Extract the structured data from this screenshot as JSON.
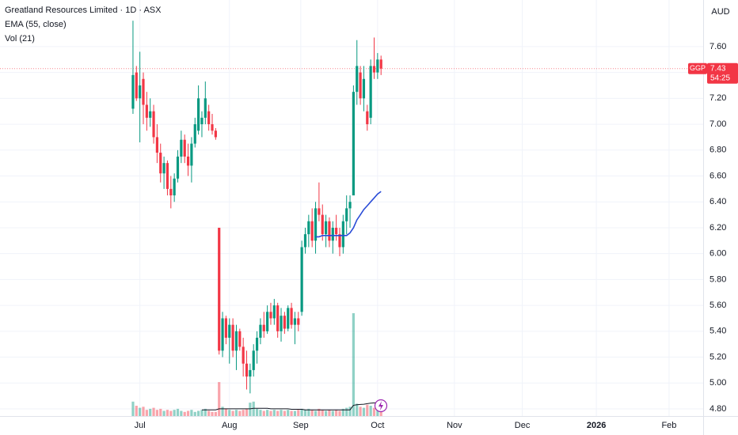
{
  "chart_data": {
    "type": "candlestick",
    "title": "Greatland Resources Limited · 1D · ASX",
    "indicators": [
      "EMA (55, close)",
      "Vol (21)"
    ],
    "currency": "AUD",
    "symbol": "GGP",
    "last_price": 7.43,
    "countdown": "54:25",
    "open": [
      7.12,
      7.4,
      7.2,
      7.35,
      7.15,
      7.05,
      7.1,
      6.9,
      6.78,
      6.62,
      6.7,
      6.5,
      6.45,
      6.58,
      6.75,
      6.88,
      6.75,
      6.68,
      6.85,
      6.95,
      7.0,
      7.05,
      7.1,
      7.0,
      6.95,
      6.2,
      5.25,
      5.5,
      5.35,
      5.45,
      5.25,
      5.4,
      5.28,
      5.15,
      5.05,
      5.1,
      5.25,
      5.35,
      5.45,
      5.4,
      5.55,
      5.5,
      5.6,
      5.4,
      5.52,
      5.42,
      5.58,
      5.45,
      5.5,
      5.55,
      6.05,
      6.15,
      6.25,
      6.1,
      6.35,
      6.3,
      6.15,
      6.25,
      6.1,
      6.2,
      6.15,
      6.05,
      6.25,
      6.35,
      6.45,
      7.25,
      7.4,
      7.2,
      7.1,
      7.05,
      7.45,
      7.4,
      7.5
    ],
    "high": [
      7.8,
      7.45,
      7.56,
      7.4,
      7.25,
      7.2,
      7.15,
      7.0,
      6.85,
      6.75,
      6.72,
      6.6,
      6.62,
      6.8,
      6.95,
      6.92,
      6.85,
      6.9,
      7.05,
      7.3,
      7.1,
      7.33,
      7.15,
      7.08,
      6.97,
      6.2,
      5.55,
      5.52,
      5.5,
      5.5,
      5.45,
      5.42,
      5.35,
      5.25,
      5.15,
      5.3,
      5.4,
      5.5,
      5.55,
      5.6,
      5.62,
      5.65,
      5.62,
      5.58,
      5.55,
      5.6,
      5.62,
      5.55,
      5.55,
      6.1,
      6.2,
      6.3,
      6.35,
      6.4,
      6.55,
      6.38,
      6.3,
      6.28,
      6.25,
      6.3,
      6.2,
      6.3,
      6.45,
      6.45,
      7.3,
      7.65,
      7.45,
      7.45,
      7.15,
      7.5,
      7.67,
      7.55,
      7.53
    ],
    "low": [
      7.08,
      7.18,
      6.86,
      7.0,
      6.95,
      6.98,
      6.85,
      6.7,
      6.55,
      6.5,
      6.45,
      6.35,
      6.4,
      6.55,
      6.7,
      6.7,
      6.6,
      6.55,
      6.82,
      6.92,
      6.9,
      7.0,
      6.95,
      6.92,
      6.88,
      5.22,
      5.2,
      5.3,
      5.15,
      5.2,
      5.1,
      5.25,
      5.05,
      4.95,
      4.92,
      5.05,
      5.15,
      5.3,
      5.35,
      5.38,
      5.45,
      5.45,
      5.35,
      5.32,
      5.38,
      5.4,
      5.42,
      5.3,
      5.4,
      5.52,
      6.0,
      6.05,
      6.05,
      6.0,
      6.25,
      6.1,
      6.05,
      6.05,
      6.0,
      6.1,
      5.98,
      6.0,
      6.15,
      6.2,
      6.45,
      7.15,
      7.15,
      7.1,
      6.95,
      7.0,
      7.35,
      7.35,
      7.38
    ],
    "close": [
      7.38,
      7.2,
      7.3,
      7.15,
      7.05,
      7.1,
      6.9,
      6.78,
      6.62,
      6.7,
      6.5,
      6.45,
      6.58,
      6.75,
      6.88,
      6.75,
      6.68,
      6.85,
      7.0,
      7.2,
      7.05,
      7.2,
      7.0,
      6.95,
      6.9,
      5.25,
      5.5,
      5.35,
      5.45,
      5.25,
      5.4,
      5.28,
      5.15,
      5.05,
      5.1,
      5.25,
      5.35,
      5.45,
      5.4,
      5.55,
      5.5,
      5.6,
      5.4,
      5.52,
      5.42,
      5.58,
      5.45,
      5.5,
      5.45,
      6.05,
      6.15,
      6.25,
      6.1,
      6.35,
      6.3,
      6.15,
      6.25,
      6.1,
      6.2,
      6.15,
      6.05,
      6.25,
      6.35,
      6.4,
      7.25,
      7.45,
      7.2,
      7.35,
      7.0,
      7.45,
      7.4,
      7.5,
      7.43
    ],
    "volume": [
      1.4,
      1.0,
      0.8,
      0.9,
      0.6,
      0.7,
      0.8,
      0.6,
      0.7,
      0.5,
      0.6,
      0.5,
      0.6,
      0.7,
      0.5,
      0.4,
      0.5,
      0.6,
      0.4,
      0.5,
      0.6,
      0.7,
      0.5,
      0.4,
      0.4,
      3.3,
      0.9,
      0.7,
      0.6,
      0.5,
      0.6,
      0.5,
      0.6,
      0.7,
      1.3,
      1.4,
      0.7,
      0.6,
      0.5,
      0.6,
      0.5,
      0.6,
      0.5,
      0.6,
      0.5,
      0.6,
      0.5,
      0.5,
      0.6,
      0.7,
      0.6,
      0.7,
      0.6,
      0.5,
      0.7,
      0.6,
      0.5,
      0.6,
      0.5,
      0.6,
      0.5,
      0.7,
      0.8,
      0.9,
      10,
      1.2,
      0.9,
      0.8,
      1.1,
      1.0,
      0.8,
      0.7,
      0.5
    ],
    "volume_ma": [
      null,
      null,
      null,
      null,
      null,
      null,
      null,
      null,
      null,
      null,
      null,
      null,
      null,
      null,
      null,
      null,
      null,
      null,
      null,
      null,
      0.6,
      0.6,
      0.6,
      0.6,
      0.6,
      0.7,
      0.7,
      0.7,
      0.7,
      0.7,
      0.7,
      0.7,
      0.7,
      0.7,
      0.7,
      0.75,
      0.75,
      0.75,
      0.75,
      0.75,
      0.7,
      0.7,
      0.7,
      0.7,
      0.7,
      0.7,
      0.65,
      0.65,
      0.65,
      0.65,
      0.6,
      0.6,
      0.6,
      0.6,
      0.6,
      0.6,
      0.6,
      0.6,
      0.6,
      0.6,
      0.6,
      0.6,
      0.6,
      0.6,
      1.05,
      1.1,
      1.12,
      1.15,
      1.2,
      1.25,
      1.28,
      1.3,
      1.32
    ],
    "ema": [
      null,
      null,
      null,
      null,
      null,
      null,
      null,
      null,
      null,
      null,
      null,
      null,
      null,
      null,
      null,
      null,
      null,
      null,
      null,
      null,
      null,
      null,
      null,
      null,
      null,
      null,
      null,
      null,
      null,
      null,
      null,
      null,
      null,
      null,
      null,
      null,
      null,
      null,
      null,
      null,
      null,
      null,
      null,
      null,
      null,
      null,
      null,
      null,
      null,
      null,
      null,
      null,
      null,
      6.13,
      6.13,
      6.14,
      6.14,
      6.14,
      6.14,
      6.14,
      6.14,
      6.14,
      6.14,
      6.16,
      6.2,
      6.26,
      6.3,
      6.34,
      6.37,
      6.4,
      6.43,
      6.46,
      6.48
    ],
    "up_color": "#089981",
    "down_color": "#f23645",
    "ema_color": "#2a4cd7",
    "ylim": [
      4.745,
      7.96
    ],
    "yticks": [
      {
        "value": 4.8,
        "label": "4.80"
      },
      {
        "value": 5,
        "label": "5.00"
      },
      {
        "value": 5.2,
        "label": "5.20"
      },
      {
        "value": 5.4,
        "label": "5.40"
      },
      {
        "value": 5.6,
        "label": "5.60"
      },
      {
        "value": 5.8,
        "label": "5.80"
      },
      {
        "value": 6,
        "label": "6.00"
      },
      {
        "value": 6.2,
        "label": "6.20"
      },
      {
        "value": 6.4,
        "label": "6.40"
      },
      {
        "value": 6.6,
        "label": "6.60"
      },
      {
        "value": 6.8,
        "label": "6.80"
      },
      {
        "value": 7,
        "label": "7.00"
      },
      {
        "value": 7.2,
        "label": "7.20"
      },
      {
        "value": 7.4,
        "label": "7.40"
      },
      {
        "value": 7.6,
        "label": "7.60"
      }
    ],
    "xlim": [
      -38.6,
      165.5
    ],
    "xticks": [
      {
        "value": 2,
        "label": "Jul"
      },
      {
        "value": 28,
        "label": "Aug"
      },
      {
        "value": 48.7,
        "label": "Sep"
      },
      {
        "value": 71,
        "label": "Oct"
      },
      {
        "value": 93.3,
        "label": "Nov"
      },
      {
        "value": 113,
        "label": "Dec"
      },
      {
        "value": 134.5,
        "label": "2026"
      },
      {
        "value": 155.6,
        "label": "Feb"
      }
    ],
    "grid": true
  }
}
